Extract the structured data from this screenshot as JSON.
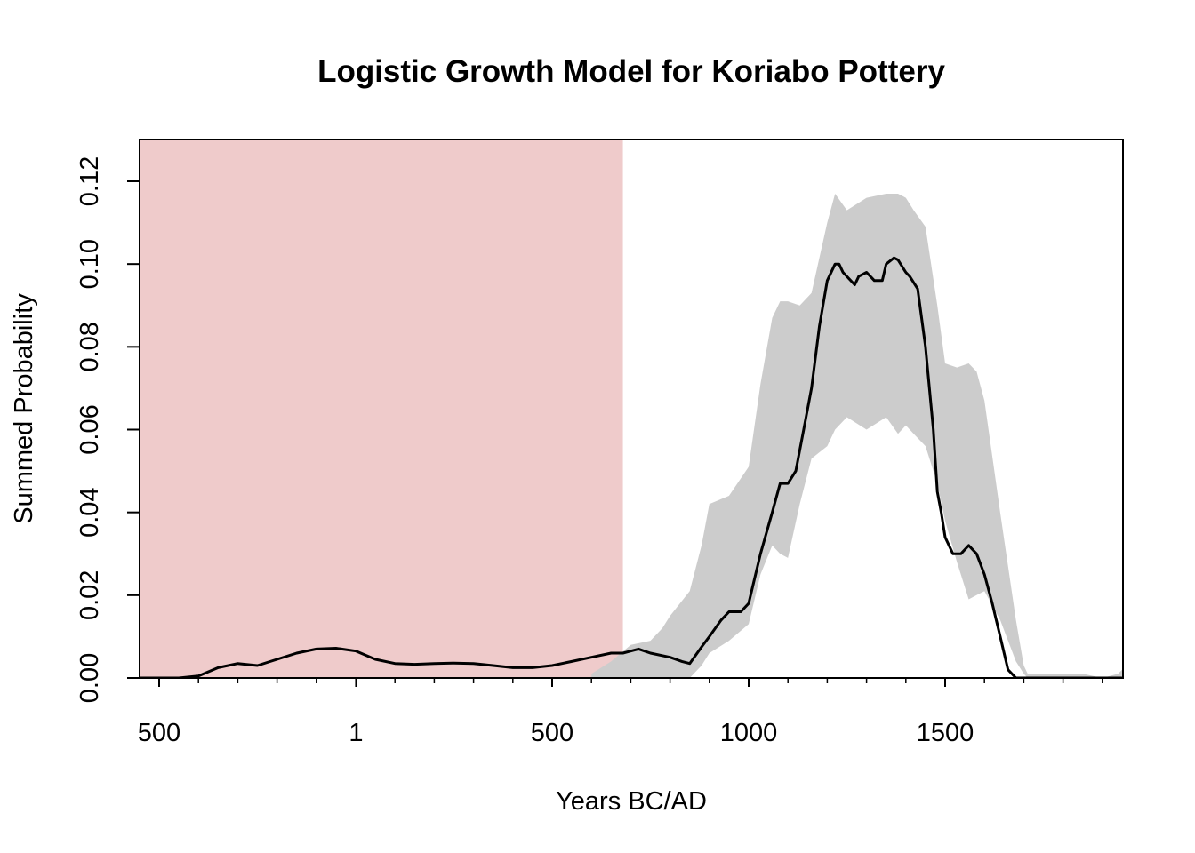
{
  "chart_data": {
    "type": "area",
    "title": "Logistic Growth Model for Koriabo Pottery",
    "xlabel": "Years BC/AD",
    "ylabel": "Summed Probability",
    "x_axis_scale": "calendar years (BC negative, AD positive)",
    "xlim": [
      -550,
      1950
    ],
    "ylim": [
      0,
      0.13
    ],
    "x_ticks": [
      {
        "value": -500,
        "label": "500"
      },
      {
        "value": 1,
        "label": "1"
      },
      {
        "value": 500,
        "label": "500"
      },
      {
        "value": 1000,
        "label": "1000"
      },
      {
        "value": 1500,
        "label": "1500"
      }
    ],
    "x_minor_tick_step": 100,
    "y_ticks": [
      {
        "value": 0.0,
        "label": "0.00"
      },
      {
        "value": 0.02,
        "label": "0.02"
      },
      {
        "value": 0.04,
        "label": "0.04"
      },
      {
        "value": 0.06,
        "label": "0.06"
      },
      {
        "value": 0.08,
        "label": "0.08"
      },
      {
        "value": 0.1,
        "label": "0.10"
      },
      {
        "value": 0.12,
        "label": "0.12"
      }
    ],
    "grid": false,
    "legend": "none",
    "shaded_region": {
      "x_start": -550,
      "x_end": 680,
      "color": "#efcbcb"
    },
    "envelope_color": "#cccccc",
    "line_color": "#000000",
    "series": [
      {
        "kind": "envelope",
        "x": [
          600,
          650,
          700,
          750,
          780,
          800,
          850,
          880,
          900,
          950,
          1000,
          1030,
          1060,
          1080,
          1100,
          1130,
          1160,
          1200,
          1220,
          1250,
          1300,
          1350,
          1380,
          1400,
          1420,
          1450,
          1480,
          1500,
          1530,
          1560,
          1580,
          1600,
          1640,
          1680,
          1700,
          1710,
          1800,
          1850,
          1900,
          1940,
          1950
        ],
        "lower": [
          0,
          0,
          0,
          0,
          0,
          0,
          0,
          0.003,
          0.006,
          0.009,
          0.013,
          0.025,
          0.032,
          0.03,
          0.029,
          0.042,
          0.053,
          0.056,
          0.06,
          0.063,
          0.06,
          0.063,
          0.059,
          0.061,
          0.059,
          0.056,
          0.047,
          0.038,
          0.028,
          0.019,
          0.02,
          0.021,
          0.014,
          0.004,
          0.001,
          0,
          0,
          0,
          0,
          0,
          0
        ],
        "upper": [
          0.001,
          0.004,
          0.008,
          0.009,
          0.012,
          0.015,
          0.021,
          0.032,
          0.042,
          0.044,
          0.051,
          0.071,
          0.087,
          0.091,
          0.091,
          0.09,
          0.093,
          0.11,
          0.117,
          0.113,
          0.116,
          0.117,
          0.117,
          0.116,
          0.113,
          0.109,
          0.09,
          0.076,
          0.075,
          0.076,
          0.074,
          0.067,
          0.04,
          0.014,
          0.003,
          0.001,
          0.001,
          0.001,
          0,
          0.001,
          0.002
        ]
      },
      {
        "kind": "line",
        "x": [
          -550,
          -450,
          -400,
          -350,
          -300,
          -250,
          -200,
          -150,
          -100,
          -50,
          1,
          50,
          100,
          150,
          200,
          250,
          300,
          350,
          400,
          450,
          500,
          550,
          600,
          650,
          680,
          700,
          720,
          750,
          800,
          830,
          850,
          880,
          900,
          930,
          950,
          980,
          1000,
          1030,
          1060,
          1080,
          1100,
          1120,
          1140,
          1160,
          1180,
          1200,
          1220,
          1230,
          1240,
          1250,
          1270,
          1280,
          1300,
          1320,
          1340,
          1350,
          1370,
          1380,
          1400,
          1410,
          1430,
          1450,
          1470,
          1480,
          1490,
          1500,
          1520,
          1540,
          1560,
          1580,
          1600,
          1620,
          1640,
          1660,
          1680,
          1700,
          1720,
          1800,
          1950
        ],
        "y": [
          0,
          0,
          0.0005,
          0.0025,
          0.0035,
          0.003,
          0.0045,
          0.006,
          0.007,
          0.0072,
          0.0065,
          0.0045,
          0.0035,
          0.0033,
          0.0035,
          0.0036,
          0.0035,
          0.003,
          0.0025,
          0.0025,
          0.003,
          0.004,
          0.005,
          0.006,
          0.006,
          0.0065,
          0.007,
          0.006,
          0.005,
          0.004,
          0.0035,
          0.0075,
          0.01,
          0.014,
          0.016,
          0.016,
          0.018,
          0.03,
          0.04,
          0.047,
          0.047,
          0.05,
          0.06,
          0.07,
          0.085,
          0.096,
          0.1,
          0.1,
          0.098,
          0.097,
          0.095,
          0.097,
          0.098,
          0.096,
          0.096,
          0.1,
          0.1015,
          0.101,
          0.098,
          0.097,
          0.094,
          0.08,
          0.06,
          0.045,
          0.04,
          0.034,
          0.03,
          0.03,
          0.032,
          0.03,
          0.025,
          0.018,
          0.01,
          0.002,
          0,
          0,
          0,
          0,
          0
        ]
      }
    ]
  }
}
